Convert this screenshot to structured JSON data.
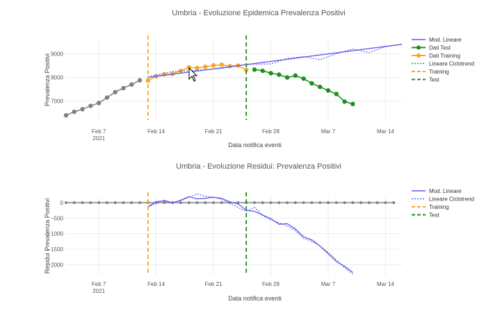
{
  "chart_data": [
    {
      "type": "line",
      "title": "Umbria - Evoluzione Epidemica Prevalenza Positivi",
      "xlabel": "Data notifica eventi",
      "ylabel": "Prevalenza Positivi",
      "x_ticks": [
        "Feb 7",
        "Feb 14",
        "Feb 21",
        "Feb 28",
        "Mar 7",
        "Mar 14"
      ],
      "x_tick_sub": "2021",
      "y_ticks": [
        "7000",
        "8000",
        "9000"
      ],
      "ylim": [
        6200,
        9600
      ],
      "x_range": [
        "2021-02-03",
        "2021-03-16"
      ],
      "grid": true,
      "legend_position": "right",
      "vlines": [
        {
          "name": "Training",
          "x": "2021-02-13",
          "color": "#f5a623",
          "dash": "dashed"
        },
        {
          "name": "Test",
          "x": "2021-02-25",
          "color": "#1a8f1a",
          "dash": "dashed"
        }
      ],
      "series": [
        {
          "name": "",
          "color": "#808080",
          "style": "markers+lines",
          "x": [
            "2021-02-03",
            "2021-02-04",
            "2021-02-05",
            "2021-02-06",
            "2021-02-07",
            "2021-02-08",
            "2021-02-09",
            "2021-02-10",
            "2021-02-11",
            "2021-02-12"
          ],
          "y": [
            6400,
            6550,
            6660,
            6800,
            6920,
            7150,
            7380,
            7550,
            7700,
            7880
          ]
        },
        {
          "name": "Dati Training",
          "color": "#f5a623",
          "style": "markers+lines",
          "x": [
            "2021-02-13",
            "2021-02-14",
            "2021-02-15",
            "2021-02-16",
            "2021-02-17",
            "2021-02-18",
            "2021-02-19",
            "2021-02-20",
            "2021-02-21",
            "2021-02-22",
            "2021-02-23",
            "2021-02-24",
            "2021-02-25"
          ],
          "y": [
            7870,
            8050,
            8130,
            8150,
            8280,
            8420,
            8400,
            8450,
            8510,
            8540,
            8480,
            8500,
            8320
          ]
        },
        {
          "name": "Dati Test",
          "color": "#1a8f1a",
          "style": "markers+lines",
          "x": [
            "2021-02-26",
            "2021-02-27",
            "2021-02-28",
            "2021-03-01",
            "2021-03-02",
            "2021-03-03",
            "2021-03-04",
            "2021-03-05",
            "2021-03-06",
            "2021-03-07",
            "2021-03-08",
            "2021-03-09",
            "2021-03-10"
          ],
          "y": [
            8330,
            8280,
            8180,
            8120,
            8000,
            8080,
            7950,
            7750,
            7600,
            7450,
            7300,
            6980,
            6880
          ]
        },
        {
          "name": "Mod. Lineare",
          "color": "#5b5bf0",
          "style": "line",
          "x": [
            "2021-02-13",
            "2021-03-16"
          ],
          "y": [
            8000,
            9400
          ]
        },
        {
          "name": "Lineare Ciclotrend",
          "color": "#5b5bf0",
          "style": "dotted",
          "x": [
            "2021-02-13",
            "2021-02-16",
            "2021-02-19",
            "2021-02-22",
            "2021-02-25",
            "2021-02-28",
            "2021-03-02",
            "2021-03-04",
            "2021-03-06",
            "2021-03-08",
            "2021-03-10",
            "2021-03-12",
            "2021-03-14",
            "2021-03-16"
          ],
          "y": [
            8030,
            8250,
            8300,
            8380,
            8550,
            8570,
            8800,
            8880,
            8750,
            9000,
            9200,
            9050,
            9300,
            9400
          ]
        }
      ]
    },
    {
      "type": "line",
      "title": "Umbria - Evoluzione Residui: Prevalenza Positivi",
      "xlabel": "Data notifica eventi",
      "ylabel": "Residui Prevalenza Positivi",
      "x_ticks": [
        "Feb 7",
        "Feb 14",
        "Feb 21",
        "Feb 28",
        "Mar 7",
        "Mar 14"
      ],
      "x_tick_sub": "2021",
      "y_ticks": [
        "0",
        "−500",
        "−1000",
        "−1500",
        "−2000"
      ],
      "ylim": [
        -2350,
        200
      ],
      "x_range": [
        "2021-02-03",
        "2021-03-16"
      ],
      "grid": true,
      "legend_position": "right",
      "vlines": [
        {
          "name": "Training",
          "x": "2021-02-13",
          "color": "#f5a623",
          "dash": "dashed"
        },
        {
          "name": "Test",
          "x": "2021-02-25",
          "color": "#1a8f1a",
          "dash": "dashed"
        }
      ],
      "zero_markers": {
        "color": "#808080",
        "x": [
          "2021-02-03",
          "2021-02-04",
          "2021-02-05",
          "2021-02-06",
          "2021-02-07",
          "2021-02-08",
          "2021-02-09",
          "2021-02-10",
          "2021-02-11",
          "2021-02-12",
          "2021-02-13",
          "2021-02-14",
          "2021-02-15",
          "2021-02-16",
          "2021-02-17",
          "2021-02-18",
          "2021-02-19",
          "2021-02-20",
          "2021-02-21",
          "2021-02-22",
          "2021-02-23",
          "2021-02-24",
          "2021-02-25",
          "2021-02-26",
          "2021-02-27",
          "2021-02-28",
          "2021-03-01",
          "2021-03-02",
          "2021-03-03",
          "2021-03-04",
          "2021-03-05",
          "2021-03-06",
          "2021-03-07",
          "2021-03-08",
          "2021-03-09",
          "2021-03-10",
          "2021-03-11",
          "2021-03-12",
          "2021-03-13",
          "2021-03-14",
          "2021-03-15"
        ]
      },
      "series": [
        {
          "name": "Mod. Lineare",
          "color": "#5b5bf0",
          "style": "line",
          "x": [
            "2021-02-13",
            "2021-02-14",
            "2021-02-15",
            "2021-02-16",
            "2021-02-17",
            "2021-02-18",
            "2021-02-19",
            "2021-02-20",
            "2021-02-21",
            "2021-02-22",
            "2021-02-23",
            "2021-02-24",
            "2021-02-25",
            "2021-02-26",
            "2021-02-27",
            "2021-02-28",
            "2021-03-01",
            "2021-03-02",
            "2021-03-03",
            "2021-03-04",
            "2021-03-05",
            "2021-03-06",
            "2021-03-07",
            "2021-03-08",
            "2021-03-09",
            "2021-03-10"
          ],
          "y": [
            -130,
            30,
            60,
            -10,
            80,
            190,
            120,
            140,
            170,
            140,
            20,
            -40,
            -250,
            -280,
            -400,
            -520,
            -700,
            -680,
            -850,
            -1100,
            -1200,
            -1400,
            -1650,
            -1900,
            -2050,
            -2250
          ]
        },
        {
          "name": "Lineare Ciclotrend",
          "color": "#5b5bf0",
          "style": "dotted",
          "x": [
            "2021-02-13",
            "2021-02-14",
            "2021-02-15",
            "2021-02-16",
            "2021-02-17",
            "2021-02-18",
            "2021-02-19",
            "2021-02-20",
            "2021-02-21",
            "2021-02-22",
            "2021-02-23",
            "2021-02-24",
            "2021-02-25",
            "2021-02-26",
            "2021-02-27",
            "2021-02-28",
            "2021-03-01",
            "2021-03-02",
            "2021-03-03",
            "2021-03-04",
            "2021-03-05",
            "2021-03-06",
            "2021-03-07",
            "2021-03-08",
            "2021-03-09",
            "2021-03-10"
          ],
          "y": [
            -150,
            -20,
            80,
            0,
            60,
            170,
            280,
            200,
            180,
            100,
            -20,
            -160,
            -280,
            -150,
            -420,
            -550,
            -650,
            -750,
            -900,
            -1150,
            -1250,
            -1400,
            -1600,
            -1850,
            -2100,
            -2300
          ]
        }
      ]
    }
  ],
  "legends": [
    {
      "entries": [
        {
          "label": "Mod. Lineare",
          "color": "#5b5bf0",
          "kind": "line"
        },
        {
          "label": "Dati Test",
          "color": "#1a8f1a",
          "kind": "marker"
        },
        {
          "label": "Dati Training",
          "color": "#f5a623",
          "kind": "marker"
        },
        {
          "label": "Lineare Ciclotrend",
          "color": "#5b5bf0",
          "kind": "dotted"
        },
        {
          "label": "Training",
          "color": "#f5a623",
          "kind": "dashed"
        },
        {
          "label": "Test",
          "color": "#1a8f1a",
          "kind": "dashed"
        }
      ]
    },
    {
      "entries": [
        {
          "label": "Mod. Lineare",
          "color": "#5b5bf0",
          "kind": "line"
        },
        {
          "label": "Lineare Ciclotrend",
          "color": "#5b5bf0",
          "kind": "dotted"
        },
        {
          "label": "Training",
          "color": "#f5a623",
          "kind": "dashed"
        },
        {
          "label": "Test",
          "color": "#1a8f1a",
          "kind": "dashed"
        }
      ]
    }
  ],
  "cursor_icon": "move-cursor-icon"
}
